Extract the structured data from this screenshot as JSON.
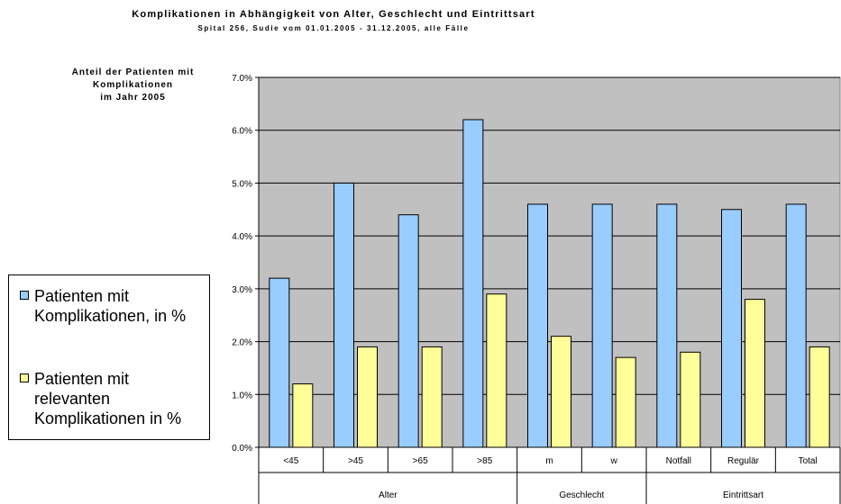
{
  "chart_data": {
    "type": "bar",
    "title": "Komplikationen in Abhängigkeit von Alter, Geschlecht und Eintrittsart",
    "subtitle": "Spital 256, Sudie vom 01.01.2005 - 31.12.2005, alle Fälle",
    "ylabel_lines": [
      "Anteil der Patienten mit",
      "Komplikationen",
      "im Jahr 2005"
    ],
    "categories": [
      "<45",
      ">45",
      ">65",
      ">85",
      "m",
      "w",
      "Notfall",
      "Regulär",
      "Total"
    ],
    "groups": [
      {
        "label": "Alter",
        "start": 0,
        "end": 3
      },
      {
        "label": "Geschlecht",
        "start": 4,
        "end": 5
      },
      {
        "label": "Eintrittsart",
        "start": 6,
        "end": 8
      }
    ],
    "series": [
      {
        "name_lines": [
          "Patienten mit",
          "Komplikationen, in %"
        ],
        "color": "#99ccff",
        "values": [
          3.2,
          5.0,
          4.4,
          6.2,
          4.6,
          4.6,
          4.6,
          4.5,
          4.6
        ]
      },
      {
        "name_lines": [
          "Patienten mit",
          "relevanten",
          "Komplikationen in %"
        ],
        "color": "#ffff99",
        "values": [
          1.2,
          1.9,
          1.9,
          2.9,
          2.1,
          1.7,
          1.8,
          2.8,
          1.9
        ]
      }
    ],
    "yticks": [
      "0.0%",
      "1.0%",
      "2.0%",
      "3.0%",
      "4.0%",
      "5.0%",
      "6.0%",
      "7.0%"
    ],
    "ylim": [
      0,
      7
    ],
    "plot_background": "#c0c0c0",
    "grid": true,
    "legend_position": "left"
  }
}
